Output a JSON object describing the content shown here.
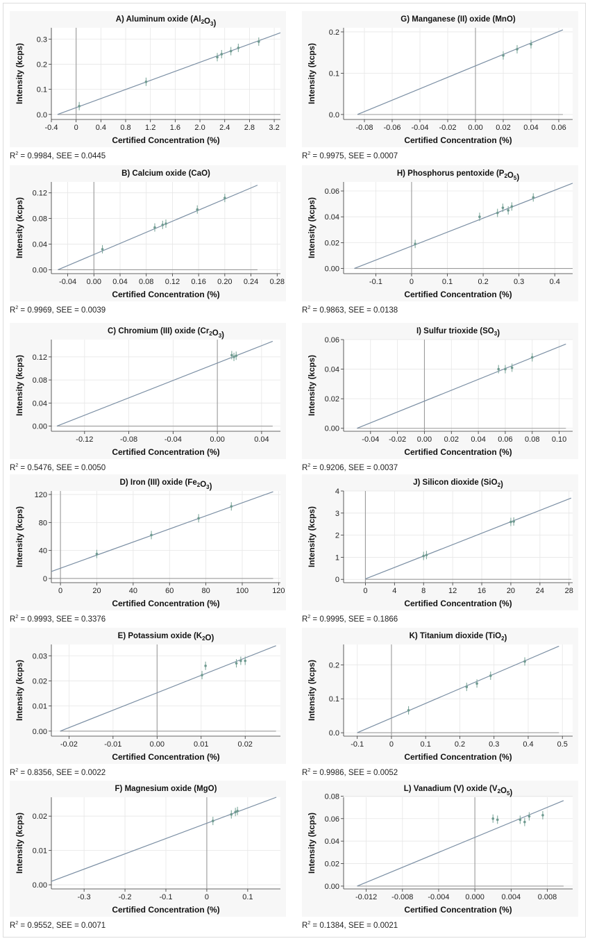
{
  "figure": {
    "x_axis_label": "Certified Concentration (%)",
    "y_axis_label": "Intensity (kcps)"
  },
  "chart_data": [
    {
      "id": "A",
      "type": "scatter",
      "title_main": "A) Aluminum oxide (Al",
      "title_parts": [
        {
          "t": "A) Aluminum oxide (Al"
        },
        {
          "t": "2",
          "sub": true
        },
        {
          "t": "O"
        },
        {
          "t": "3",
          "sub": true
        },
        {
          "t": ")"
        }
      ],
      "xlabel": "Certified Concentration (%)",
      "ylabel": "Intensity (kcps)",
      "xlim": [
        -0.4,
        3.3
      ],
      "ylim": [
        -0.02,
        0.345
      ],
      "xticks": [
        -0.4,
        0,
        0.4,
        0.8,
        1.2,
        1.6,
        2.0,
        2.4,
        2.8,
        3.2
      ],
      "xtick_labels": [
        "-0.4",
        "0",
        "0.4",
        "0.8",
        "1.2",
        "1.6",
        "2.0",
        "2.4",
        "2.8",
        "3.2"
      ],
      "yticks": [
        0,
        0.1,
        0.2,
        0.3
      ],
      "ytick_labels": [
        "0.0",
        "0.1",
        "0.2",
        "0.3"
      ],
      "fit_line": {
        "x0": -0.3,
        "y0": 0,
        "x1": 3.3,
        "y1": 0.325
      },
      "vline_x": 0,
      "hline": {
        "y": 0,
        "x0": -0.3,
        "x1": 3.3
      },
      "points": [
        [
          0.05,
          0.033
        ],
        [
          1.13,
          0.13
        ],
        [
          2.28,
          0.228
        ],
        [
          2.35,
          0.24
        ],
        [
          2.5,
          0.252
        ],
        [
          2.62,
          0.265
        ],
        [
          2.95,
          0.29
        ]
      ],
      "r2": "0.9984",
      "see": "0.0445"
    },
    {
      "id": "B",
      "type": "scatter",
      "title_parts": [
        {
          "t": "B) Calcium oxide (CaO)"
        }
      ],
      "xlabel": "Certified Concentration (%)",
      "ylabel": "Intensity (kcps)",
      "xlim": [
        -0.065,
        0.285
      ],
      "ylim": [
        -0.006,
        0.137
      ],
      "xticks": [
        -0.04,
        0,
        0.04,
        0.08,
        0.12,
        0.16,
        0.2,
        0.24,
        0.28
      ],
      "xtick_labels": [
        "-0.04",
        "0.00",
        "0.04",
        "0.08",
        "0.12",
        "0.16",
        "0.20",
        "0.24",
        "0.28"
      ],
      "yticks": [
        0,
        0.04,
        0.08,
        0.12
      ],
      "ytick_labels": [
        "0.00",
        "0.04",
        "0.08",
        "0.12"
      ],
      "fit_line": {
        "x0": -0.055,
        "y0": 0,
        "x1": 0.25,
        "y1": 0.132
      },
      "vline_x": 0,
      "hline": {
        "y": 0,
        "x0": -0.055,
        "x1": 0.25
      },
      "points": [
        [
          0.013,
          0.032
        ],
        [
          0.093,
          0.066
        ],
        [
          0.105,
          0.07
        ],
        [
          0.11,
          0.072
        ],
        [
          0.158,
          0.094
        ],
        [
          0.2,
          0.112
        ]
      ],
      "r2": "0.9969",
      "see": "0.0039"
    },
    {
      "id": "C",
      "type": "scatter",
      "title_parts": [
        {
          "t": "C) Chromium (III) oxide (Cr"
        },
        {
          "t": "2",
          "sub": true
        },
        {
          "t": "O"
        },
        {
          "t": "3",
          "sub": true
        },
        {
          "t": ")"
        }
      ],
      "xlabel": "Certified Concentration (%)",
      "ylabel": "Intensity (kcps)",
      "xlim": [
        -0.15,
        0.057
      ],
      "ylim": [
        -0.009,
        0.15
      ],
      "xticks": [
        -0.12,
        -0.08,
        -0.04,
        0,
        0.04
      ],
      "xtick_labels": [
        "-0.12",
        "-0.08",
        "-0.04",
        "0.00",
        "0.04"
      ],
      "yticks": [
        0,
        0.04,
        0.08,
        0.12
      ],
      "ytick_labels": [
        "0.00",
        "0.04",
        "0.08",
        "0.12"
      ],
      "fit_line": {
        "x0": -0.145,
        "y0": 0,
        "x1": 0.05,
        "y1": 0.147
      },
      "vline_x": 0,
      "hline": {
        "y": 0,
        "x0": -0.145,
        "x1": 0.05
      },
      "points": [
        [
          0.013,
          0.123
        ],
        [
          0.015,
          0.12
        ],
        [
          0.017,
          0.122
        ]
      ],
      "r2": "0.5476",
      "see": "0.0050"
    },
    {
      "id": "D",
      "type": "scatter",
      "title_parts": [
        {
          "t": "D) Iron (III) oxide (Fe"
        },
        {
          "t": "2",
          "sub": true
        },
        {
          "t": "O"
        },
        {
          "t": "3",
          "sub": true
        },
        {
          "t": ")"
        }
      ],
      "xlabel": "Certified Concentration (%)",
      "ylabel": "Intensity (kcps)",
      "xlim": [
        -5,
        121
      ],
      "ylim": [
        -6,
        125
      ],
      "xticks": [
        0,
        20,
        40,
        60,
        80,
        100,
        120
      ],
      "xtick_labels": [
        "0",
        "20",
        "40",
        "60",
        "80",
        "100",
        "120"
      ],
      "yticks": [
        0,
        40,
        80,
        120
      ],
      "ytick_labels": [
        "0",
        "40",
        "80",
        "120"
      ],
      "fit_line": {
        "x0": -5,
        "y0": 10,
        "x1": 117,
        "y1": 124
      },
      "vline_x": 0,
      "hline": {
        "y": 0,
        "x0": -5,
        "x1": 117
      },
      "points": [
        [
          20,
          35
        ],
        [
          50,
          62
        ],
        [
          76,
          86
        ],
        [
          94,
          103
        ]
      ],
      "r2": "0.9993",
      "see": "0.3376"
    },
    {
      "id": "E",
      "type": "scatter",
      "title_parts": [
        {
          "t": "E) Potassium oxide (K"
        },
        {
          "t": "2",
          "sub": true
        },
        {
          "t": "O)"
        }
      ],
      "xlabel": "Certified Concentration (%)",
      "ylabel": "Intensity (kcps)",
      "xlim": [
        -0.024,
        0.028
      ],
      "ylim": [
        -0.002,
        0.0345
      ],
      "xticks": [
        -0.02,
        -0.01,
        0,
        0.01,
        0.02
      ],
      "xtick_labels": [
        "-0.02",
        "-0.01",
        "0.00",
        "0.01",
        "0.02"
      ],
      "yticks": [
        0,
        0.01,
        0.02,
        0.03
      ],
      "ytick_labels": [
        "0.00",
        "0.01",
        "0.02",
        "0.03"
      ],
      "fit_line": {
        "x0": -0.022,
        "y0": 0,
        "x1": 0.027,
        "y1": 0.034
      },
      "vline_x": 0,
      "hline": {
        "y": 0,
        "x0": -0.022,
        "x1": 0.027
      },
      "points": [
        [
          0.0102,
          0.0223
        ],
        [
          0.011,
          0.026
        ],
        [
          0.018,
          0.027
        ],
        [
          0.019,
          0.028
        ],
        [
          0.02,
          0.028
        ]
      ],
      "r2": "0.8356",
      "see": "0.0022"
    },
    {
      "id": "F",
      "type": "scatter",
      "title_parts": [
        {
          "t": "F) Magnesium oxide (MgO)"
        }
      ],
      "xlabel": "Certified Concentration (%)",
      "ylabel": "Intensity (kcps)",
      "xlim": [
        -0.38,
        0.18
      ],
      "ylim": [
        -0.0012,
        0.0255
      ],
      "xticks": [
        -0.3,
        -0.2,
        -0.1,
        0,
        0.1
      ],
      "xtick_labels": [
        "-0.3",
        "-0.2",
        "-0.1",
        "0",
        "0.1"
      ],
      "yticks": [
        0,
        0.01,
        0.02
      ],
      "ytick_labels": [
        "0.00",
        "0.01",
        "0.02"
      ],
      "fit_line": {
        "x0": -0.38,
        "y0": 0.001,
        "x1": 0.17,
        "y1": 0.0255
      },
      "vline_x": 0,
      "hline": null,
      "points": [
        [
          0.015,
          0.0186
        ],
        [
          0.06,
          0.0205
        ],
        [
          0.07,
          0.0212
        ],
        [
          0.075,
          0.0215
        ]
      ],
      "r2": "0.9552",
      "see": "0.0071"
    },
    {
      "id": "G",
      "type": "scatter",
      "title_parts": [
        {
          "t": "G) Manganese (II) oxide (MnO)"
        }
      ],
      "xlabel": "Certified Concentration (%)",
      "ylabel": "Intensity (kcps)",
      "xlim": [
        -0.095,
        0.07
      ],
      "ylim": [
        -0.012,
        0.21
      ],
      "xticks": [
        -0.08,
        -0.06,
        -0.04,
        -0.02,
        0,
        0.02,
        0.04,
        0.06
      ],
      "xtick_labels": [
        "-0.08",
        "-0.06",
        "-0.04",
        "-0.02",
        "0.00",
        "0.02",
        "0.04",
        "0.06"
      ],
      "yticks": [
        0,
        0.1,
        0.2
      ],
      "ytick_labels": [
        "0.0",
        "0.1",
        "0.2"
      ],
      "fit_line": {
        "x0": -0.085,
        "y0": 0,
        "x1": 0.063,
        "y1": 0.205
      },
      "vline_x": 0,
      "hline": {
        "y": 0,
        "x0": -0.085,
        "x1": 0.063
      },
      "points": [
        [
          0.02,
          0.143
        ],
        [
          0.03,
          0.158
        ],
        [
          0.04,
          0.17
        ]
      ],
      "r2": "0.9975",
      "see": "0.0007"
    },
    {
      "id": "H",
      "type": "scatter",
      "title_parts": [
        {
          "t": "H) Phosphorus pentoxide (P"
        },
        {
          "t": "2",
          "sub": true
        },
        {
          "t": "O"
        },
        {
          "t": "5",
          "sub": true
        },
        {
          "t": ")"
        }
      ],
      "xlabel": "Certified Concentration (%)",
      "ylabel": "Intensity (kcps)",
      "xlim": [
        -0.19,
        0.45
      ],
      "ylim": [
        -0.004,
        0.067
      ],
      "xticks": [
        -0.1,
        0,
        0.1,
        0.2,
        0.3,
        0.4
      ],
      "xtick_labels": [
        "-0.1",
        "0",
        "0.1",
        "0.2",
        "0.3",
        "0.4"
      ],
      "yticks": [
        0,
        0.02,
        0.04,
        0.06
      ],
      "ytick_labels": [
        "0.00",
        "0.02",
        "0.04",
        "0.06"
      ],
      "fit_line": {
        "x0": -0.16,
        "y0": 0,
        "x1": 0.45,
        "y1": 0.066
      },
      "vline_x": 0,
      "hline": {
        "y": 0,
        "x0": -0.16,
        "x1": 0.45
      },
      "points": [
        [
          0.01,
          0.019
        ],
        [
          0.19,
          0.04
        ],
        [
          0.24,
          0.043
        ],
        [
          0.255,
          0.047
        ],
        [
          0.27,
          0.045
        ],
        [
          0.28,
          0.048
        ],
        [
          0.34,
          0.055
        ]
      ],
      "r2": "0.9863",
      "see": "0.0138"
    },
    {
      "id": "I",
      "type": "scatter",
      "title_parts": [
        {
          "t": "I) Sulfur trioxide (SO"
        },
        {
          "t": "3",
          "sub": true
        },
        {
          "t": ")"
        }
      ],
      "xlabel": "Certified Concentration (%)",
      "ylabel": "Intensity (kcps)",
      "xlim": [
        -0.06,
        0.11
      ],
      "ylim": [
        -0.002,
        0.06
      ],
      "xticks": [
        -0.04,
        -0.02,
        0,
        0.02,
        0.04,
        0.06,
        0.08,
        0.1
      ],
      "xtick_labels": [
        "-0.04",
        "-0.02",
        "0.00",
        "0.02",
        "0.04",
        "0.06",
        "0.08",
        "0.10"
      ],
      "yticks": [
        0,
        0.02,
        0.04,
        0.06
      ],
      "ytick_labels": [
        "0.00",
        "0.02",
        "0.04",
        "0.06"
      ],
      "fit_line": {
        "x0": -0.05,
        "y0": 0,
        "x1": 0.105,
        "y1": 0.057
      },
      "vline_x": 0,
      "hline": {
        "y": 0,
        "x0": -0.05,
        "x1": 0.105
      },
      "points": [
        [
          0.055,
          0.04
        ],
        [
          0.06,
          0.04
        ],
        [
          0.065,
          0.041
        ],
        [
          0.08,
          0.048
        ]
      ],
      "r2": "0.9206",
      "see": "0.0037"
    },
    {
      "id": "J",
      "type": "scatter",
      "title_parts": [
        {
          "t": "J) Silicon dioxide (SiO"
        },
        {
          "t": "2",
          "sub": true
        },
        {
          "t": ")"
        }
      ],
      "xlabel": "Certified Concentration (%)",
      "ylabel": "Intensity (kcps)",
      "xlim": [
        -3,
        28.5
      ],
      "ylim": [
        -0.15,
        4
      ],
      "xticks": [
        0,
        4,
        8,
        12,
        16,
        20,
        24,
        28
      ],
      "xtick_labels": [
        "0",
        "4",
        "8",
        "12",
        "16",
        "20",
        "24",
        "28"
      ],
      "yticks": [
        0,
        1,
        2,
        3,
        4
      ],
      "ytick_labels": [
        "0",
        "1",
        "2",
        "3",
        "4"
      ],
      "fit_line": {
        "x0": 0,
        "y0": 0.02,
        "x1": 28.3,
        "y1": 3.68
      },
      "vline_x": 0,
      "hline": {
        "y": 0,
        "x0": 0,
        "x1": 28.3
      },
      "points": [
        [
          8,
          1.06
        ],
        [
          8.4,
          1.1
        ],
        [
          20,
          2.6
        ],
        [
          20.4,
          2.62
        ]
      ],
      "r2": "0.9995",
      "see": "0.1866"
    },
    {
      "id": "K",
      "type": "scatter",
      "title_parts": [
        {
          "t": "K) Titanium dioxide (TiO"
        },
        {
          "t": "2",
          "sub": true
        },
        {
          "t": ")"
        }
      ],
      "xlabel": "Certified Concentration (%)",
      "ylabel": "Intensity (kcps)",
      "xlim": [
        -0.14,
        0.53
      ],
      "ylim": [
        -0.01,
        0.26
      ],
      "xticks": [
        -0.1,
        0,
        0.1,
        0.2,
        0.3,
        0.4,
        0.5
      ],
      "xtick_labels": [
        "-0.1",
        "0",
        "0.1",
        "0.2",
        "0.3",
        "0.4",
        "0.5"
      ],
      "yticks": [
        0,
        0.1,
        0.2
      ],
      "ytick_labels": [
        "0.0",
        "0.1",
        "0.2"
      ],
      "fit_line": {
        "x0": -0.1,
        "y0": 0,
        "x1": 0.49,
        "y1": 0.255
      },
      "vline_x": 0,
      "hline": {
        "y": 0,
        "x0": -0.1,
        "x1": 0.49
      },
      "points": [
        [
          0.05,
          0.066
        ],
        [
          0.22,
          0.135
        ],
        [
          0.25,
          0.145
        ],
        [
          0.29,
          0.168
        ],
        [
          0.39,
          0.21
        ]
      ],
      "r2": "0.9986",
      "see": "0.0052"
    },
    {
      "id": "L",
      "type": "scatter",
      "title_parts": [
        {
          "t": "L) Vanadium (V) oxide (V"
        },
        {
          "t": "2",
          "sub": true
        },
        {
          "t": "O"
        },
        {
          "t": "5",
          "sub": true
        },
        {
          "t": ")"
        }
      ],
      "xlabel": "Certified Concentration (%)",
      "ylabel": "Intensity (kcps)",
      "xlim": [
        -0.0145,
        0.0108
      ],
      "ylim": [
        -0.0025,
        0.079
      ],
      "xticks": [
        -0.012,
        -0.008,
        -0.004,
        0,
        0.004,
        0.008
      ],
      "xtick_labels": [
        "-0.012",
        "-0.008",
        "-0.004",
        "0.000",
        "0.004",
        "0.008"
      ],
      "yticks": [
        0,
        0.02,
        0.04,
        0.06,
        0.08
      ],
      "ytick_labels": [
        "0.00",
        "0.02",
        "0.04",
        "0.06",
        "0.08"
      ],
      "fit_line": {
        "x0": -0.013,
        "y0": 0,
        "x1": 0.0098,
        "y1": 0.076
      },
      "vline_x": 0,
      "hline": {
        "y": 0,
        "x0": -0.013,
        "x1": 0.0098
      },
      "points": [
        [
          0.002,
          0.06
        ],
        [
          0.0025,
          0.059
        ],
        [
          0.005,
          0.059
        ],
        [
          0.0055,
          0.057
        ],
        [
          0.006,
          0.062
        ],
        [
          0.0075,
          0.063
        ]
      ],
      "r2": "0.1384",
      "see": "0.0021"
    }
  ]
}
